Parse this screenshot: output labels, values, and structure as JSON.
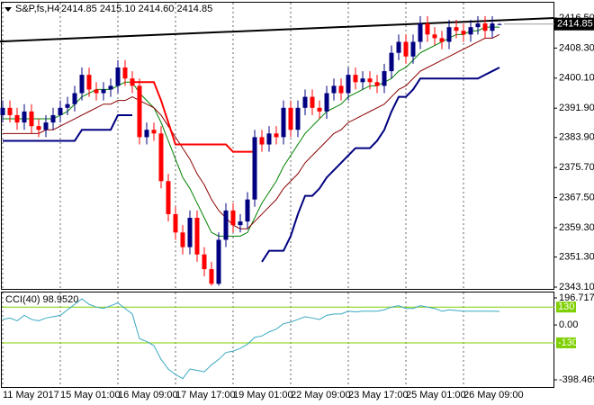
{
  "chart_data": [
    {
      "type": "candlestick",
      "title": "S&P,fs,H4",
      "subtitle": "2414.85 2415.10 2414.60 2414.85",
      "categories": [
        "11 May 2017",
        null,
        null,
        null,
        null,
        null,
        null,
        null,
        "15 May 01:00",
        null,
        null,
        null,
        null,
        null,
        null,
        null,
        "16 May 09:00",
        null,
        null,
        null,
        null,
        null,
        null,
        null,
        "17 May 17:00",
        null,
        null,
        null,
        null,
        null,
        null,
        null,
        "19 May 01:00",
        null,
        null,
        null,
        null,
        null,
        null,
        null,
        "22 May 09:00",
        null,
        null,
        null,
        null,
        null,
        null,
        null,
        "23 May 17:00",
        null,
        null,
        null,
        null,
        null,
        null,
        null,
        "25 May 01:00",
        null,
        null,
        null,
        null,
        null,
        null,
        null,
        "26 May 09:00",
        null,
        null,
        null,
        null,
        null
      ],
      "open": [
        2390,
        2392,
        2390,
        2388,
        2391,
        2387,
        2386,
        2388,
        2390,
        2392,
        2393,
        2396,
        2401,
        2397,
        2396,
        2397,
        2398,
        2403,
        2400,
        2398,
        2384,
        2386,
        2385,
        2372,
        2363,
        2358,
        2354,
        2362,
        2352,
        2348,
        2344,
        2356,
        2364,
        2360,
        2361,
        2367,
        2384,
        2382,
        2385,
        2384,
        2392,
        2386,
        2392,
        2395,
        2392,
        2391,
        2396,
        2398,
        2396,
        2401,
        2399,
        2400,
        2399,
        2398,
        2402,
        2407,
        2410,
        2406,
        2410,
        2415,
        2412,
        2411,
        2410,
        2414,
        2413,
        2412,
        2414,
        2415,
        2413,
        2414.85
      ],
      "high": [
        2394,
        2394,
        2392,
        2393,
        2393,
        2389,
        2390,
        2392,
        2394,
        2395,
        2398,
        2403,
        2403,
        2399,
        2399,
        2400,
        2405,
        2405,
        2402,
        2400,
        2388,
        2388,
        2387,
        2374,
        2365,
        2360,
        2364,
        2364,
        2354,
        2350,
        2358,
        2366,
        2366,
        2363,
        2369,
        2386,
        2386,
        2387,
        2387,
        2394,
        2394,
        2394,
        2397,
        2397,
        2394,
        2398,
        2400,
        2400,
        2403,
        2403,
        2402,
        2402,
        2401,
        2404,
        2409,
        2412,
        2412,
        2412,
        2417,
        2417,
        2414,
        2413,
        2416,
        2416,
        2415,
        2416,
        2417,
        2417,
        2417,
        2415.1
      ],
      "low": [
        2388,
        2388,
        2386,
        2386,
        2385,
        2384,
        2384,
        2386,
        2388,
        2390,
        2391,
        2394,
        2395,
        2394,
        2394,
        2395,
        2396,
        2398,
        2396,
        2382,
        2382,
        2383,
        2370,
        2361,
        2356,
        2352,
        2352,
        2350,
        2346,
        2343.5,
        2343.5,
        2354,
        2358,
        2358,
        2359,
        2365,
        2380,
        2380,
        2382,
        2382,
        2384,
        2384,
        2390,
        2390,
        2389,
        2389,
        2394,
        2394,
        2394,
        2397,
        2397,
        2397,
        2396,
        2396,
        2400,
        2405,
        2404,
        2404,
        2408,
        2410,
        2409,
        2408,
        2408,
        2411,
        2410,
        2410,
        2412,
        2411,
        2411,
        2414.6
      ],
      "close": [
        2392,
        2390,
        2388,
        2391,
        2387,
        2386,
        2388,
        2390,
        2392,
        2393,
        2396,
        2401,
        2397,
        2396,
        2397,
        2398,
        2403,
        2400,
        2398,
        2384,
        2386,
        2385,
        2372,
        2363,
        2358,
        2354,
        2362,
        2352,
        2348,
        2344,
        2356,
        2364,
        2360,
        2361,
        2367,
        2384,
        2382,
        2385,
        2384,
        2392,
        2386,
        2392,
        2395,
        2392,
        2391,
        2396,
        2398,
        2396,
        2401,
        2399,
        2400,
        2399,
        2398,
        2402,
        2407,
        2410,
        2406,
        2410,
        2415,
        2412,
        2411,
        2410,
        2414,
        2413,
        2412,
        2414,
        2415,
        2413,
        2415,
        2414.85
      ],
      "up_color": "#000080",
      "down_color": "#ff0000",
      "series": [
        {
          "color": "#008000",
          "values": [
            2389,
            2389,
            2389,
            2389,
            2389,
            2389,
            2389,
            2389,
            2390,
            2391,
            2393,
            2395,
            2396,
            2397,
            2397,
            2397,
            2398,
            2399,
            2399,
            2396,
            2394,
            2392,
            2388,
            2383,
            2378,
            2373,
            2370,
            2366,
            2362,
            2358,
            2357,
            2357,
            2357,
            2357,
            2358,
            2362,
            2366,
            2369,
            2372,
            2376,
            2379,
            2382,
            2385,
            2387,
            2389,
            2391,
            2392,
            2393,
            2395,
            2396,
            2397,
            2398,
            2398,
            2399,
            2400,
            2402,
            2403,
            2405,
            2407,
            2408,
            2409,
            2410,
            2411,
            2412,
            2412,
            2413,
            2413,
            2414,
            2414,
            2414
          ]
        },
        {
          "color": "#8b0000",
          "values": [
            2385,
            2385,
            2385,
            2385,
            2385,
            2385,
            2386,
            2386,
            2387,
            2388,
            2389,
            2390,
            2391,
            2392,
            2393,
            2393,
            2394,
            2394,
            2395,
            2394,
            2393,
            2392,
            2390,
            2387,
            2384,
            2381,
            2378,
            2374,
            2371,
            2367,
            2364,
            2362,
            2360,
            2359,
            2359,
            2361,
            2363,
            2365,
            2367,
            2370,
            2372,
            2374,
            2377,
            2379,
            2381,
            2383,
            2385,
            2386,
            2388,
            2389,
            2390,
            2391,
            2392,
            2393,
            2395,
            2397,
            2398,
            2400,
            2402,
            2403,
            2404,
            2405,
            2406,
            2407,
            2408,
            2409,
            2410,
            2411,
            2411,
            2412
          ]
        },
        {
          "color": "#ff0000",
          "values": [
            null,
            null,
            null,
            null,
            null,
            null,
            null,
            null,
            null,
            null,
            null,
            null,
            null,
            null,
            null,
            null,
            null,
            null,
            2399,
            2399,
            2399,
            2399,
            2394,
            2388,
            2382,
            2382,
            2382,
            2382,
            2382,
            2382,
            2382,
            2382,
            2380,
            2380,
            2380,
            2380,
            null,
            null,
            null,
            null,
            null,
            null,
            null,
            null,
            null,
            null,
            null,
            null,
            null,
            null,
            null,
            null,
            null,
            null,
            null,
            null,
            null,
            null,
            null,
            null,
            null,
            null,
            null,
            null,
            null,
            null,
            null,
            null,
            null,
            null
          ]
        },
        {
          "color": "#000080",
          "values": [
            2383,
            2383,
            2383,
            2383,
            2383,
            2383,
            2383,
            2383,
            2383,
            2383,
            2383,
            2386,
            2386,
            2386,
            2386,
            2386,
            2390,
            2390,
            2390,
            null,
            null,
            null,
            null,
            null,
            null,
            null,
            null,
            null,
            null,
            null,
            null,
            null,
            null,
            null,
            null,
            null,
            2350,
            2353,
            2353,
            2353,
            2357,
            2363,
            2368,
            2368,
            2370,
            2373,
            2375,
            2377,
            2379,
            2381,
            2381,
            2381,
            2383,
            2386,
            2391,
            2395,
            2395,
            2397,
            2400,
            2400,
            2400,
            2400,
            2400,
            2400,
            2400,
            2400,
            2400,
            2401,
            2402,
            2403
          ]
        }
      ],
      "trendline": {
        "x": [
          -0.375,
          76.625
        ],
        "values": [
          2410.1,
          2416.5
        ],
        "color": "#000000"
      },
      "last_price": 2414.85,
      "ylim": [
        2343.1,
        2416.5
      ],
      "yticks": [
        {
          "value": 2416.5,
          "label": "2416.50"
        },
        {
          "value": 2408.3,
          "label": "2408.30"
        },
        {
          "value": 2400.1,
          "label": "2400.10"
        },
        {
          "value": 2391.9,
          "label": "2391.90"
        },
        {
          "value": 2383.9,
          "label": "2383.90"
        },
        {
          "value": 2375.7,
          "label": "2375.70"
        },
        {
          "value": 2367.5,
          "label": "2367.50"
        },
        {
          "value": 2359.3,
          "label": "2359.30"
        },
        {
          "value": 2351.3,
          "label": "2351.30"
        },
        {
          "value": 2343.1,
          "label": "2343.10"
        }
      ]
    },
    {
      "type": "line",
      "title": "CCI(40) 98.9520",
      "series": [
        {
          "color": "#3aa8c1",
          "values": [
            40,
            50,
            30,
            70,
            40,
            30,
            50,
            60,
            70,
            110,
            150,
            190,
            150,
            130,
            120,
            140,
            160,
            120,
            80,
            -100,
            -120,
            -150,
            -250,
            -320,
            -360,
            -390,
            -320,
            -330,
            -340,
            -290,
            -250,
            -200,
            -190,
            -170,
            -140,
            -90,
            -80,
            -50,
            -30,
            10,
            20,
            40,
            60,
            50,
            40,
            70,
            80,
            80,
            100,
            95,
            100,
            100,
            100,
            110,
            130,
            140,
            120,
            120,
            140,
            130,
            120,
            100,
            110,
            105,
            100,
            100,
            100,
            100,
            100,
            98.952
          ]
        }
      ],
      "levels": [
        130,
        -130
      ],
      "level_color": "#7fd000",
      "ylim": [
        -398.469,
        196.7175
      ],
      "yticks": [
        196.7175,
        {
          "value": 0,
          "label": "0.00"
        },
        -398.469
      ]
    }
  ]
}
